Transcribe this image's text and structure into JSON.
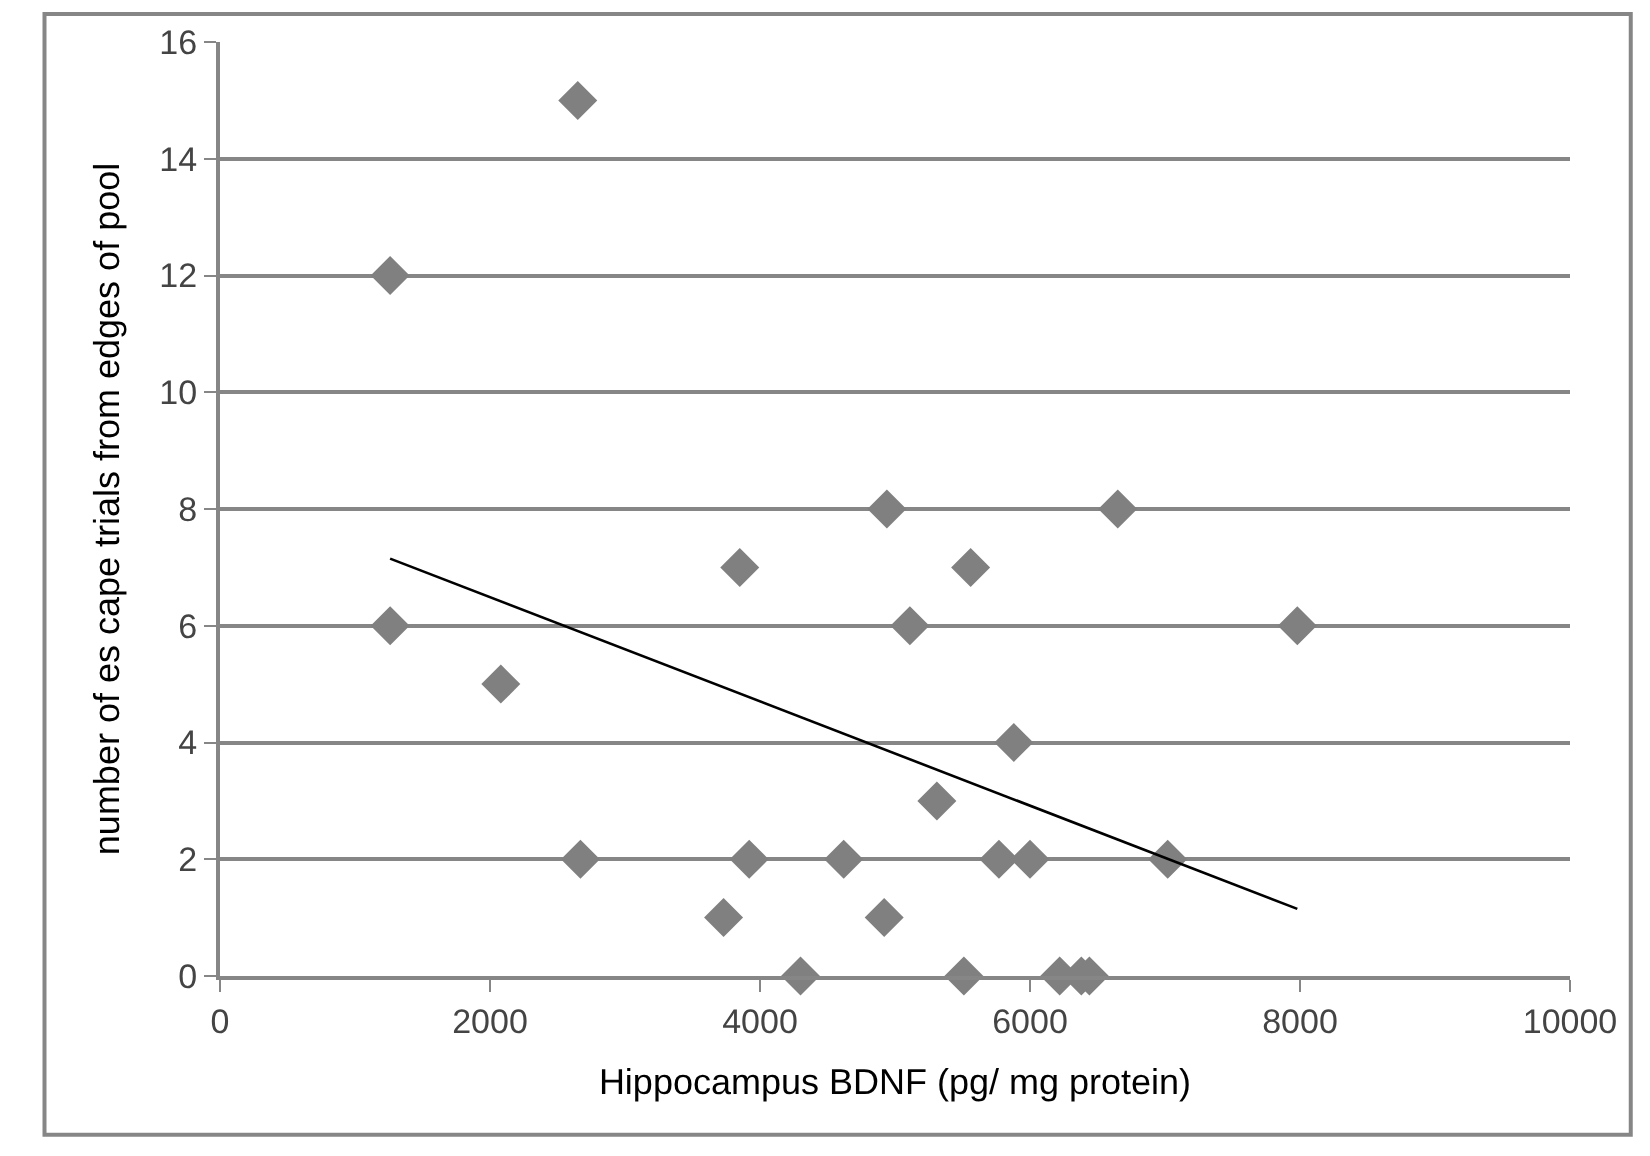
{
  "chart_data": {
    "type": "scatter",
    "xlabel": "Hippocampus BDNF (pg/ mg protein)",
    "ylabel": "number of es cape trials from edges of pool",
    "series": [
      {
        "color": "#808080",
        "marker": "diamond",
        "x": [
          1260,
          1260,
          2650,
          2080,
          2670,
          3730,
          3850,
          3920,
          4300,
          4620,
          4940,
          4920,
          5110,
          5310,
          5510,
          5560,
          5770,
          5880,
          6000,
          6220,
          6380,
          6440,
          6650,
          7020,
          7980
        ],
        "values": [
          12,
          6,
          15,
          5,
          2,
          1,
          7,
          2,
          0,
          2,
          8,
          1,
          6,
          3,
          0,
          7,
          2,
          4,
          2,
          0,
          0,
          0,
          8,
          2,
          6
        ]
      },
      {
        "type": "line",
        "color": "#000000",
        "marker": "none",
        "x": [
          1260,
          7980
        ],
        "values": [
          7.15,
          1.15
        ]
      }
    ],
    "xlim": [
      0,
      10000
    ],
    "xticks": [
      0,
      2000,
      4000,
      6000,
      8000,
      10000
    ],
    "ylim": [
      0,
      16
    ],
    "yticks": [
      0,
      2,
      4,
      6,
      8,
      10,
      12,
      14,
      16
    ],
    "grid": "y",
    "legend": false
  }
}
